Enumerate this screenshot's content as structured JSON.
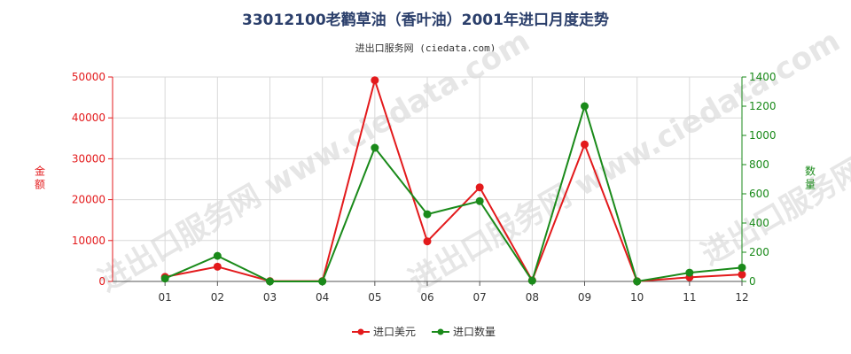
{
  "title": "33012100老鹳草油（香叶油）2001年进口月度走势",
  "subtitle": "进出口服务网 (ciedata.com)",
  "watermark": "进出口服务网 www.ciedata.com",
  "colors": {
    "amount": "#e31a1c",
    "quantity": "#1a8a1a",
    "grid": "#d9d9d9",
    "axis": "#555555"
  },
  "chart_data": {
    "type": "line",
    "categories": [
      "01",
      "02",
      "03",
      "04",
      "05",
      "06",
      "07",
      "08",
      "09",
      "10",
      "11",
      "12"
    ],
    "series": [
      {
        "name": "进口美元",
        "axis": "left",
        "values": [
          1100,
          3600,
          80,
          80,
          49200,
          9800,
          23000,
          250,
          33500,
          50,
          1000,
          1700
        ]
      },
      {
        "name": "进口数量",
        "axis": "right",
        "values": [
          20,
          175,
          0,
          0,
          915,
          460,
          550,
          5,
          1200,
          0,
          60,
          95
        ]
      }
    ],
    "y_left": {
      "label": "金额",
      "min": 0,
      "max": 50000,
      "ticks": [
        0,
        10000,
        20000,
        30000,
        40000,
        50000
      ]
    },
    "y_right": {
      "label": "数量",
      "min": 0,
      "max": 1400,
      "ticks": [
        0,
        200,
        400,
        600,
        800,
        1000,
        1200,
        1400
      ]
    },
    "grid": true,
    "legend_position": "bottom-center"
  }
}
